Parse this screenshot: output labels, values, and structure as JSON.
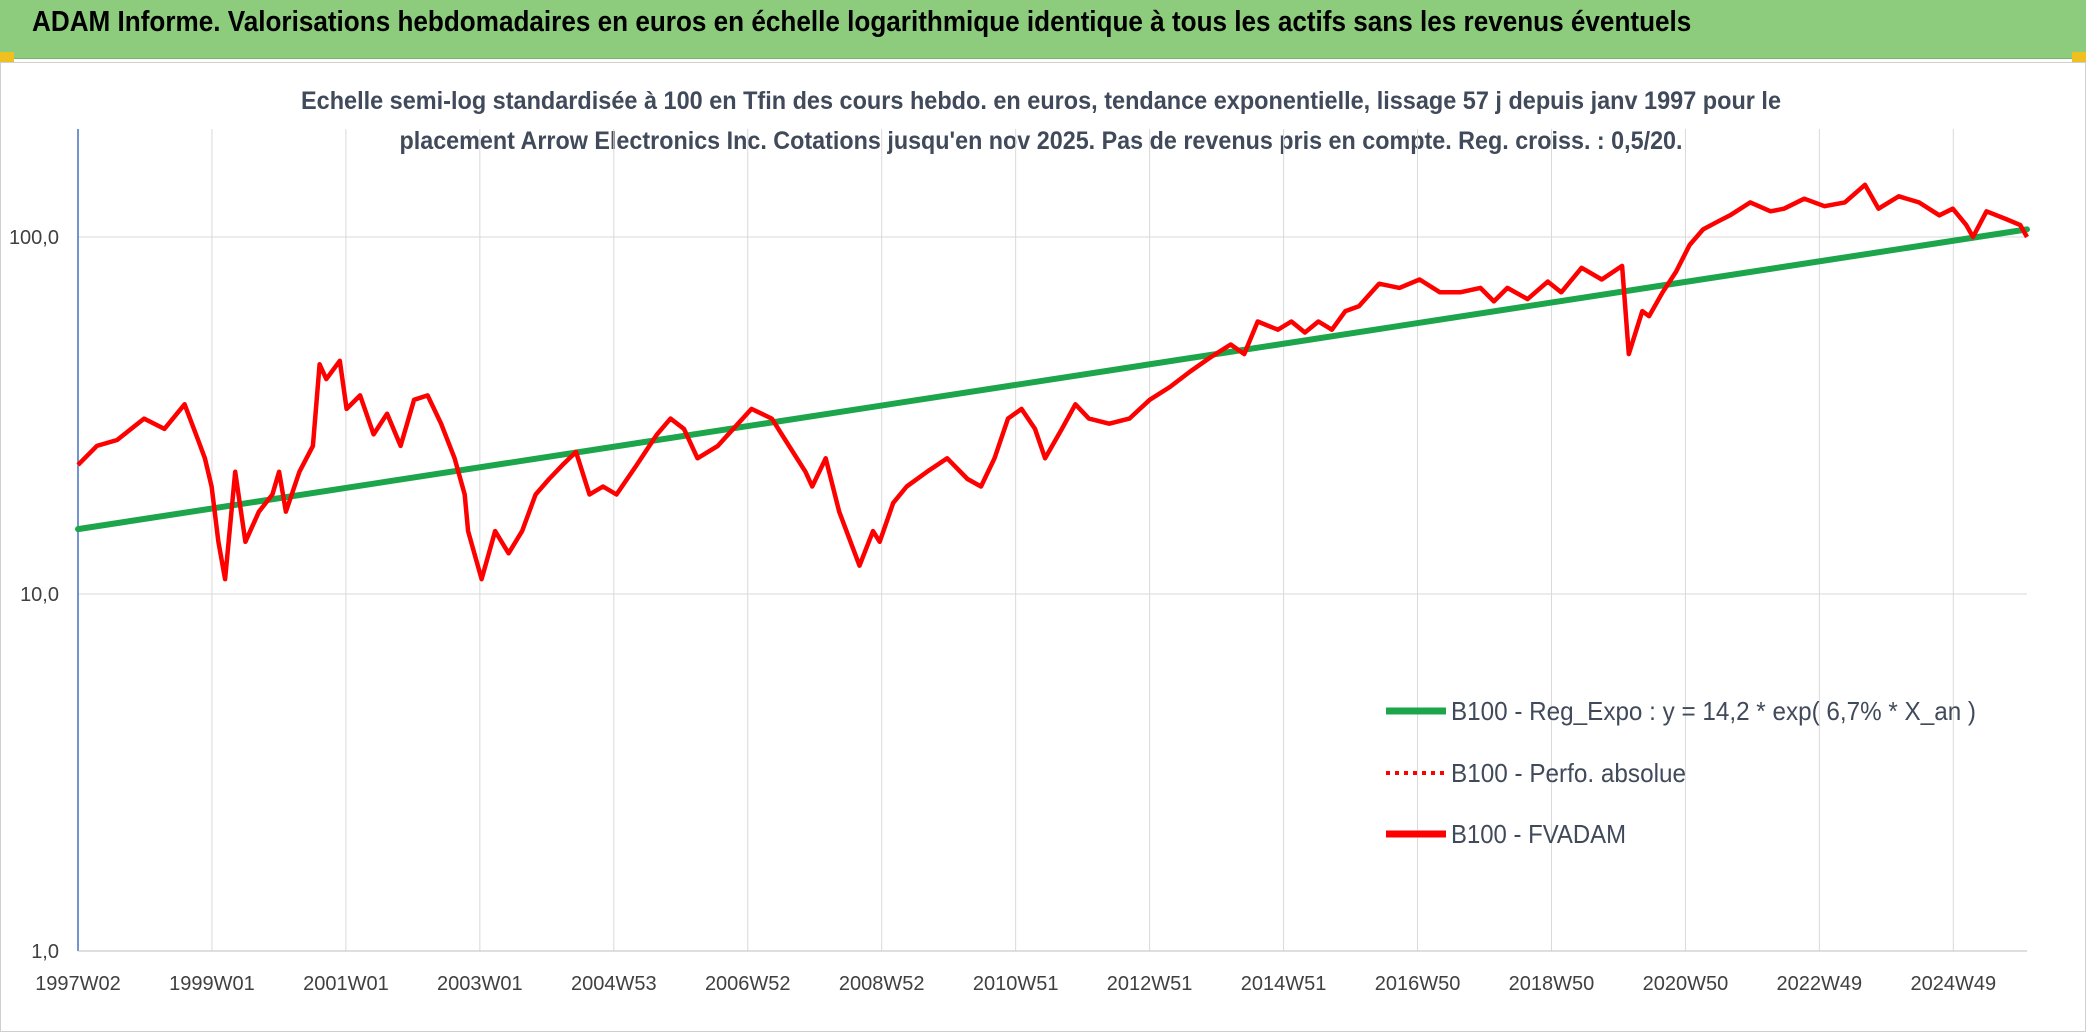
{
  "banner": {
    "title": "ADAM Informe. Valorisations hebdomadaires en euros en échelle logarithmique identique à tous les actifs sans les revenus éventuels"
  },
  "colors": {
    "banner_bg": "#8ccc7c",
    "regression": "#1ca54b",
    "fvadam": "#ff0000",
    "perfo": "#ff0000",
    "grid": "#d9d9d9",
    "axis": "#4472c4"
  },
  "chart_data": {
    "type": "line",
    "title_line1": "Echelle semi-log standardisée à 100 en Tfin des cours hebdo. en euros, tendance exponentielle, lissage 57 j depuis janv 1997 pour le",
    "title_line2": "placement Arrow Electronics Inc. Cotations jusqu'en nov 2025. Pas de revenus pris en compte. Reg. croiss. : 0,5/20.",
    "y_scale": "log",
    "ylim": [
      1,
      200
    ],
    "y_ticks": [
      "1,0",
      "10,0",
      "100,0"
    ],
    "x_range": [
      1997.02,
      2025.9
    ],
    "x_ticks": [
      "1997W02",
      "1999W01",
      "2001W01",
      "2003W01",
      "2004W53",
      "2006W52",
      "2008W52",
      "2010W51",
      "2012W51",
      "2014W51",
      "2016W50",
      "2018W50",
      "2020W50",
      "2022W49",
      "2024W49"
    ],
    "grid": "vertical and horizontal gridlines",
    "legend_position": "bottom-right",
    "series": [
      {
        "name": "B100 - Reg_Expo : y = 14,2 * exp( 6,7% * X_an )",
        "style": "solid-thick-green",
        "x": [
          1997.02,
          2025.9
        ],
        "y": [
          15.2,
          105
        ]
      },
      {
        "name": "B100 - Perfo. absolue",
        "style": "dotted-red",
        "x": [],
        "y": []
      },
      {
        "name": "B100 - FVADAM",
        "style": "solid-red",
        "x": [
          1997.02,
          1997.3,
          1997.6,
          1998.0,
          1998.3,
          1998.6,
          1998.8,
          1998.9,
          1999.0,
          1999.1,
          1999.2,
          1999.35,
          1999.5,
          1999.7,
          1999.9,
          2000.0,
          2000.1,
          2000.3,
          2000.5,
          2000.6,
          2000.7,
          2000.9,
          2001.0,
          2001.2,
          2001.4,
          2001.6,
          2001.8,
          2002.0,
          2002.2,
          2002.4,
          2002.6,
          2002.75,
          2002.8,
          2003.0,
          2003.2,
          2003.4,
          2003.6,
          2003.8,
          2004.0,
          2004.2,
          2004.4,
          2004.6,
          2004.8,
          2005.0,
          2005.3,
          2005.6,
          2005.8,
          2006.0,
          2006.2,
          2006.5,
          2006.8,
          2007.0,
          2007.3,
          2007.5,
          2007.8,
          2007.9,
          2008.1,
          2008.3,
          2008.6,
          2008.8,
          2008.9,
          2009.1,
          2009.3,
          2009.6,
          2009.9,
          2010.2,
          2010.4,
          2010.6,
          2010.8,
          2011.0,
          2011.2,
          2011.35,
          2011.6,
          2011.8,
          2012.0,
          2012.3,
          2012.6,
          2012.9,
          2013.2,
          2013.5,
          2013.8,
          2014.1,
          2014.3,
          2014.5,
          2014.8,
          2015.0,
          2015.2,
          2015.4,
          2015.6,
          2015.8,
          2016.0,
          2016.3,
          2016.6,
          2016.9,
          2017.2,
          2017.5,
          2017.8,
          2018.0,
          2018.2,
          2018.5,
          2018.8,
          2019.0,
          2019.3,
          2019.6,
          2019.9,
          2020.0,
          2020.2,
          2020.3,
          2020.5,
          2020.7,
          2020.9,
          2021.1,
          2021.3,
          2021.5,
          2021.8,
          2022.1,
          2022.3,
          2022.6,
          2022.9,
          2023.2,
          2023.5,
          2023.7,
          2024.0,
          2024.3,
          2024.6,
          2024.8,
          2025.0,
          2025.1,
          2025.3,
          2025.6,
          2025.8,
          2025.9
        ],
        "y": [
          23,
          26,
          27,
          31,
          29,
          34,
          27,
          24,
          20,
          14,
          11,
          22,
          14,
          17,
          19,
          22,
          17,
          22,
          26,
          44,
          40,
          45,
          33,
          36,
          28,
          32,
          26,
          35,
          36,
          30,
          24,
          19,
          15,
          11,
          15,
          13,
          15,
          19,
          21,
          23,
          25,
          19,
          20,
          19,
          23,
          28,
          31,
          29,
          24,
          26,
          30,
          33,
          31,
          27,
          22,
          20,
          24,
          17,
          12,
          15,
          14,
          18,
          20,
          22,
          24,
          21,
          20,
          24,
          31,
          33,
          29,
          24,
          29,
          34,
          31,
          30,
          31,
          35,
          38,
          42,
          46,
          50,
          47,
          58,
          55,
          58,
          54,
          58,
          55,
          62,
          64,
          74,
          72,
          76,
          70,
          70,
          72,
          66,
          72,
          67,
          75,
          70,
          82,
          76,
          83,
          47,
          62,
          60,
          70,
          80,
          95,
          105,
          110,
          115,
          125,
          118,
          120,
          128,
          122,
          125,
          140,
          120,
          130,
          125,
          115,
          120,
          108,
          100,
          118,
          112,
          108,
          100
        ]
      }
    ]
  }
}
